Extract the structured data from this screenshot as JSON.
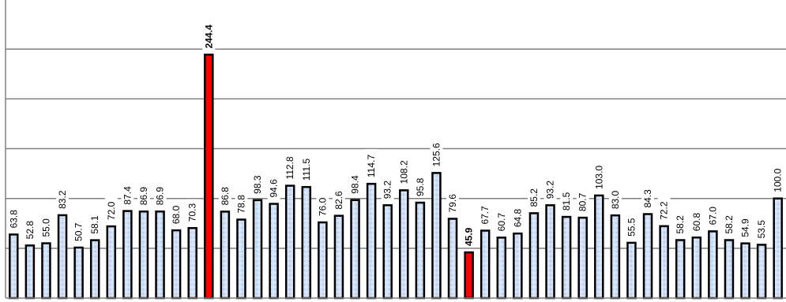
{
  "chart_data": {
    "type": "bar",
    "title": "",
    "xlabel": "",
    "ylabel": "",
    "ylim": [
      0,
      300
    ],
    "grid": true,
    "gridlines": [
      50,
      100,
      150,
      200,
      250,
      300
    ],
    "values": [
      63.8,
      52.8,
      55.0,
      83.2,
      50.7,
      58.1,
      72.0,
      87.4,
      86.9,
      86.9,
      68.0,
      70.3,
      244.4,
      86.8,
      78.8,
      98.3,
      94.6,
      112.8,
      111.5,
      76.0,
      82.6,
      98.4,
      114.7,
      93.2,
      108.2,
      95.8,
      125.6,
      79.6,
      45.9,
      67.7,
      60.7,
      64.8,
      85.2,
      93.2,
      81.5,
      80.7,
      103.0,
      83.0,
      55.5,
      84.3,
      72.2,
      58.2,
      60.8,
      67.0,
      58.2,
      54.9,
      53.5,
      100.0
    ],
    "labels": [
      "63.8",
      "52.8",
      "55.0",
      "83.2",
      "50.7",
      "58.1",
      "72.0",
      "87.4",
      "86.9",
      "86.9",
      "68.0",
      "70.3",
      "244.4",
      "86.8",
      "78.8",
      "98.3",
      "94.6",
      "112.8",
      "111.5",
      "76.0",
      "82.6",
      "98.4",
      "114.7",
      "93.2",
      "108.2",
      "95.8",
      "125.6",
      "79.6",
      "45.9",
      "67.7",
      "60.7",
      "64.8",
      "85.2",
      "93.2",
      "81.5",
      "80.7",
      "103.0",
      "83.0",
      "55.5",
      "84.3",
      "72.2",
      "58.2",
      "60.8",
      "67.0",
      "58.2",
      "54.9",
      "53.5",
      "100.0"
    ],
    "highlight": [
      12,
      28
    ],
    "colors": {
      "bar_fill": "#cfe0f7",
      "highlight_fill": "#ff0000",
      "bar_stroke": "#000000",
      "grid": "#808080"
    }
  }
}
